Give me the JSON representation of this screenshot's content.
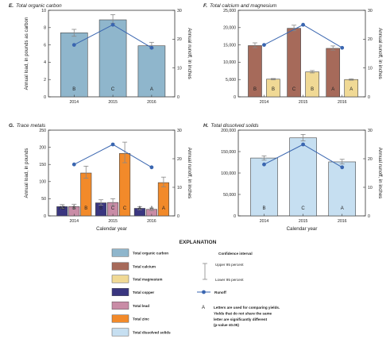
{
  "colors": {
    "organic_carbon": "#8fb6cc",
    "calcium": "#a66a5a",
    "magnesium": "#f0d995",
    "copper": "#3a3680",
    "lead": "#c98ca6",
    "zinc": "#f28a2a",
    "dissolved_solids": "#c6dff1",
    "runoff": "#3a66b0",
    "error_bar": "#888888"
  },
  "chart_data": [
    {
      "type": "bar",
      "title_letter": "E.",
      "title": "Total organic carbon",
      "ylabel": "Annual load, in pounds as carbon",
      "y2label": "Annual runoff, in inches",
      "categories": [
        "2014",
        "2015",
        "2016"
      ],
      "ylim": [
        0,
        10
      ],
      "yticks": [
        "0",
        "2",
        "4",
        "6",
        "8",
        "10"
      ],
      "y2lim": [
        0,
        30
      ],
      "y2ticks": [
        "0",
        "10",
        "20",
        "30"
      ],
      "series": [
        {
          "key": "organic_carbon",
          "values": [
            7.4,
            8.9,
            5.9
          ],
          "upper": [
            7.8,
            9.5,
            6.3
          ],
          "lower": [
            7.0,
            8.5,
            5.6
          ],
          "letters": [
            "B",
            "C",
            "A"
          ]
        }
      ],
      "runoff": [
        18,
        25,
        17
      ]
    },
    {
      "type": "bar",
      "title_letter": "F.",
      "title": "Total calcium and magnesium",
      "ylabel": "",
      "y2label": "Annual runoff, in inches",
      "categories": [
        "2014",
        "2015",
        "2016"
      ],
      "ylim": [
        0,
        25000
      ],
      "yticks": [
        "0",
        "5,000",
        "10,000",
        "15,000",
        "20,000",
        "25,000"
      ],
      "y2lim": [
        0,
        30
      ],
      "y2ticks": [
        "0",
        "10",
        "20",
        "30"
      ],
      "series": [
        {
          "key": "calcium",
          "values": [
            14800,
            19800,
            14000
          ],
          "upper": [
            15600,
            20700,
            14700
          ],
          "lower": [
            14200,
            19100,
            13500
          ],
          "letters": [
            "B",
            "C",
            "A"
          ]
        },
        {
          "key": "magnesium",
          "values": [
            5100,
            7200,
            5000
          ],
          "upper": [
            5300,
            7600,
            5200
          ],
          "lower": [
            4900,
            6900,
            4800
          ],
          "letters": [
            "B",
            "B",
            "A"
          ]
        }
      ],
      "runoff": [
        18,
        25,
        17
      ]
    },
    {
      "type": "bar",
      "title_letter": "G.",
      "title": "Trace metals",
      "ylabel": "Annual load, in pounds",
      "y2label": "Annual runoff, in inches",
      "xlabel": "Calendar year",
      "categories": [
        "2014",
        "2015",
        "2016"
      ],
      "ylim": [
        0,
        250
      ],
      "yticks": [
        "0",
        "50",
        "100",
        "150",
        "200",
        "250"
      ],
      "y2lim": [
        0,
        30
      ],
      "y2ticks": [
        "0",
        "10",
        "20",
        "30"
      ],
      "series": [
        {
          "key": "copper",
          "values": [
            27,
            38,
            22
          ],
          "upper": [
            33,
            47,
            27
          ],
          "lower": [
            22,
            31,
            18
          ],
          "letters": [
            "AB",
            "B",
            "A"
          ]
        },
        {
          "key": "lead",
          "values": [
            27,
            39,
            19
          ],
          "upper": [
            34,
            50,
            23
          ],
          "lower": [
            21,
            30,
            15
          ],
          "letters": [
            "B",
            "C",
            "A"
          ]
        },
        {
          "key": "zinc",
          "values": [
            125,
            182,
            97
          ],
          "upper": [
            145,
            215,
            113
          ],
          "lower": [
            110,
            155,
            85
          ],
          "letters": [
            "B",
            "C",
            "A"
          ]
        }
      ],
      "runoff": [
        18,
        25,
        17
      ]
    },
    {
      "type": "bar",
      "title_letter": "H.",
      "title": "Total dissolved solids",
      "ylabel": "",
      "y2label": "Annual runoff, in inches",
      "xlabel": "Calendar year",
      "categories": [
        "2014",
        "2015",
        "2016"
      ],
      "ylim": [
        0,
        200000
      ],
      "yticks": [
        "0",
        "50,000",
        "100,000",
        "150,000",
        "200,000"
      ],
      "y2lim": [
        0,
        30
      ],
      "y2ticks": [
        "0",
        "10",
        "20",
        "30"
      ],
      "series": [
        {
          "key": "dissolved_solids",
          "values": [
            135000,
            182000,
            126000
          ],
          "upper": [
            140000,
            190000,
            132000
          ],
          "lower": [
            130000,
            175000,
            121000
          ],
          "letters": [
            "B",
            "C",
            "A"
          ]
        }
      ],
      "runoff": [
        18,
        25,
        17
      ]
    }
  ],
  "explanation": {
    "title": "EXPLANATION",
    "items": [
      {
        "key": "organic_carbon",
        "label": "Total organic carbon"
      },
      {
        "key": "calcium",
        "label": "Total calcium"
      },
      {
        "key": "magnesium",
        "label": "Total magnesium"
      },
      {
        "key": "copper",
        "label": "Total copper"
      },
      {
        "key": "lead",
        "label": "Total lead"
      },
      {
        "key": "zinc",
        "label": "Total zinc"
      },
      {
        "key": "dissolved_solids",
        "label": "Total dissolved solids"
      }
    ],
    "confidence_title": "Confidence interval",
    "upper_label": "Upper 95 percent",
    "lower_label": "Lower 95 percent",
    "runoff_label": "Runoff",
    "letter_symbol": "A",
    "letter_lines": [
      "Letters are used for comparing yields.",
      "Yields that do not share the same",
      "letter are significantly different",
      "(p-value ≤0.05)"
    ]
  }
}
